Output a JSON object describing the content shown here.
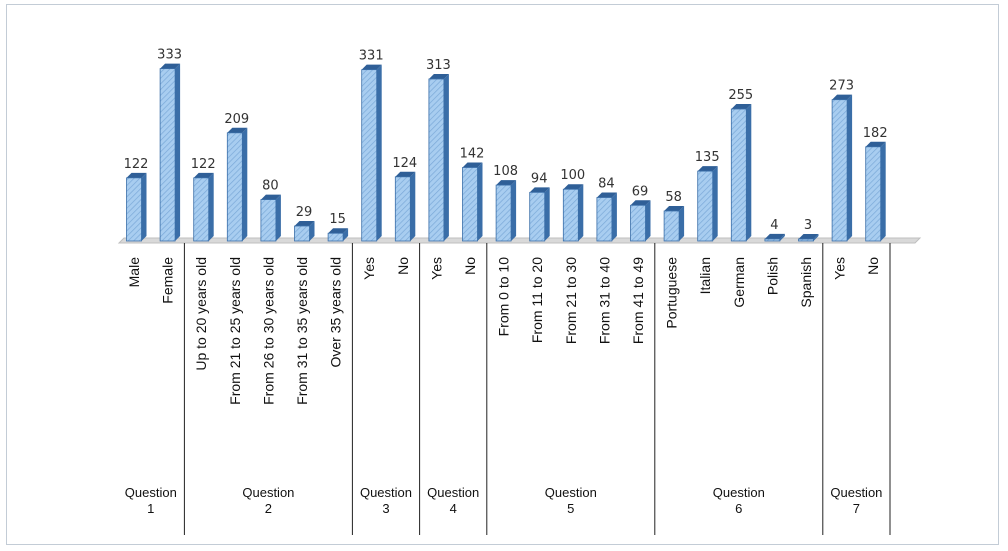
{
  "chart_data": {
    "type": "bar",
    "ylim": [
      0,
      340
    ],
    "grid": false,
    "legend": "none",
    "colors": {
      "bar_front": "#99c3ea",
      "bar_side": "#3a6ea8",
      "bar_top": "#2f5f97",
      "floor": "#d9d9d9"
    },
    "groups": [
      {
        "label": "Question",
        "number": "1",
        "categories": [
          "Male",
          "Female"
        ],
        "values": [
          122,
          333
        ]
      },
      {
        "label": "Question",
        "number": "2",
        "categories": [
          "Up to 20 years old",
          "From 21 to 25 years old",
          "From 26 to 30 years old",
          "From 31 to 35 years old",
          "Over 35 years old"
        ],
        "values": [
          122,
          209,
          80,
          29,
          15
        ]
      },
      {
        "label": "Question",
        "number": "3",
        "categories": [
          "Yes",
          "No"
        ],
        "values": [
          331,
          124
        ]
      },
      {
        "label": "Question",
        "number": "4",
        "categories": [
          "Yes",
          "No"
        ],
        "values": [
          313,
          142
        ]
      },
      {
        "label": "Question",
        "number": "5",
        "categories": [
          "From 0 to 10",
          "From 11 to 20",
          "From 21 to 30",
          "From 31 to 40",
          "From 41 to 49"
        ],
        "values": [
          108,
          94,
          100,
          84,
          69
        ]
      },
      {
        "label": "Question",
        "number": "6",
        "categories": [
          "Portuguese",
          "Italian",
          "German",
          "Polish",
          "Spanish"
        ],
        "values": [
          58,
          135,
          255,
          4,
          3
        ]
      },
      {
        "label": "Question",
        "number": "7",
        "categories": [
          "Yes",
          "No"
        ],
        "values": [
          273,
          182
        ]
      }
    ]
  }
}
